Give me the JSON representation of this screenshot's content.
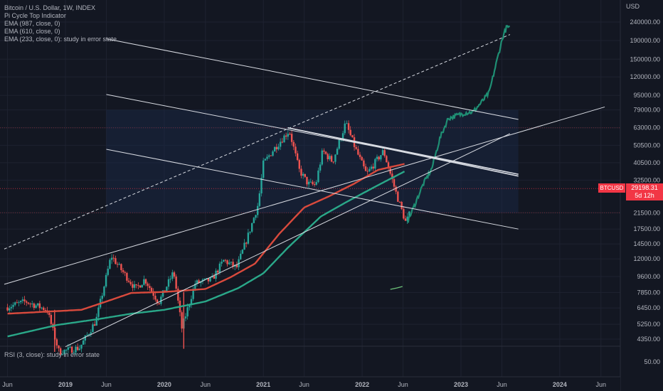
{
  "header": {
    "title": "Bitcoin / U.S. Dollar, 1W, INDEX",
    "indicators": [
      "Pi Cycle Top Indicator",
      "EMA (987, close, 0)",
      "EMA (610, close, 0)",
      "EMA (233, close, 0): study in error state"
    ],
    "rsi_label": "RSI (3, close): study in error state"
  },
  "price_tag": {
    "symbol": "BTCUSD",
    "price": "29198.31",
    "countdown": "5d 12h"
  },
  "colors": {
    "background": "#131722",
    "grid": "#1e2230",
    "up_candle": "#26a69a",
    "down_candle": "#ef5350",
    "ema_red": "#d94a3d",
    "ema_green": "#2aa889",
    "projection": "#1f8f74",
    "lines": "#d8dbe2",
    "price_tag": "#f23645"
  },
  "chart_data": {
    "type": "candlestick",
    "currency": "USD",
    "y_scale": "log",
    "y_ticks": [
      "240000.00",
      "190000.00",
      "150000.00",
      "120000.00",
      "95000.00",
      "79000.00",
      "63000.00",
      "50500.00",
      "40500.00",
      "32500.00",
      "21500.00",
      "17500.00",
      "14500.00",
      "12000.00",
      "9600.00",
      "7850.00",
      "6450.00",
      "5250.00",
      "4350.00"
    ],
    "rsi_tick": "50.00",
    "x_ticks": [
      "Jun",
      "2019",
      "Jun",
      "2020",
      "Jun",
      "2021",
      "Jun",
      "2022",
      "Jun",
      "2023",
      "Jun",
      "2024",
      "Jun"
    ],
    "x_ticks_bold": [
      "2019",
      "2020",
      "2021",
      "2022",
      "2023",
      "2024"
    ],
    "price_anchors": [
      [
        "2018-06-01",
        6500
      ],
      [
        "2018-08-15",
        7000
      ],
      [
        "2018-11-01",
        6300
      ],
      [
        "2018-12-15",
        3700
      ],
      [
        "2019-03-01",
        3900
      ],
      [
        "2019-05-01",
        5500
      ],
      [
        "2019-06-26",
        12500
      ],
      [
        "2019-08-01",
        10500
      ],
      [
        "2019-09-25",
        8200
      ],
      [
        "2019-10-28",
        9300
      ],
      [
        "2019-12-18",
        6900
      ],
      [
        "2020-02-12",
        10200
      ],
      [
        "2020-03-13",
        5000
      ],
      [
        "2020-05-01",
        8800
      ],
      [
        "2020-07-01",
        9200
      ],
      [
        "2020-08-15",
        11800
      ],
      [
        "2020-10-01",
        10700
      ],
      [
        "2020-11-15",
        16500
      ],
      [
        "2020-12-20",
        24000
      ],
      [
        "2021-01-08",
        40000
      ],
      [
        "2021-02-15",
        48000
      ],
      [
        "2021-04-14",
        61000
      ],
      [
        "2021-05-20",
        37000
      ],
      [
        "2021-06-22",
        31000
      ],
      [
        "2021-07-20",
        30500
      ],
      [
        "2021-08-15",
        47000
      ],
      [
        "2021-09-21",
        41000
      ],
      [
        "2021-11-08",
        67000
      ],
      [
        "2021-12-15",
        48000
      ],
      [
        "2022-01-24",
        35000
      ],
      [
        "2022-03-28",
        47000
      ],
      [
        "2022-05-12",
        28000
      ],
      [
        "2022-06-18",
        19000
      ],
      [
        "2022-07-01",
        21000
      ]
    ],
    "projection_anchors": [
      [
        "2022-06-20",
        19500
      ],
      [
        "2022-07-15",
        24000
      ],
      [
        "2022-08-15",
        31000
      ],
      [
        "2022-09-15",
        37500
      ],
      [
        "2022-10-15",
        55000
      ],
      [
        "2022-11-15",
        71000
      ],
      [
        "2023-01-15",
        76000
      ],
      [
        "2023-02-15",
        77000
      ],
      [
        "2023-03-15",
        86000
      ],
      [
        "2023-04-15",
        98000
      ],
      [
        "2023-05-15",
        150000
      ],
      [
        "2023-06-05",
        200000
      ],
      [
        "2023-06-20",
        227000
      ],
      [
        "2023-07-01",
        220000
      ]
    ],
    "ema_red_anchors": [
      [
        "2018-06-01",
        6000
      ],
      [
        "2019-03-01",
        6300
      ],
      [
        "2019-06-01",
        7000
      ],
      [
        "2019-09-01",
        7800
      ],
      [
        "2020-01-01",
        7900
      ],
      [
        "2020-06-01",
        8200
      ],
      [
        "2020-09-01",
        9500
      ],
      [
        "2020-12-01",
        11300
      ],
      [
        "2021-03-01",
        16500
      ],
      [
        "2021-06-01",
        23000
      ],
      [
        "2021-09-01",
        26500
      ],
      [
        "2021-12-01",
        31000
      ],
      [
        "2022-03-01",
        37000
      ],
      [
        "2022-06-10",
        40000
      ]
    ],
    "ema_green_anchors": [
      [
        "2018-06-01",
        4500
      ],
      [
        "2018-12-01",
        5200
      ],
      [
        "2019-05-01",
        5600
      ],
      [
        "2019-09-01",
        6000
      ],
      [
        "2020-01-01",
        6300
      ],
      [
        "2020-06-01",
        7000
      ],
      [
        "2020-10-01",
        8300
      ],
      [
        "2021-01-01",
        10000
      ],
      [
        "2021-04-01",
        13800
      ],
      [
        "2021-08-01",
        20500
      ],
      [
        "2021-11-01",
        24500
      ],
      [
        "2022-03-01",
        30500
      ],
      [
        "2022-06-10",
        36500
      ]
    ],
    "trend_lines": [
      {
        "points": [
          [
            "2018-05-20",
            13600
          ],
          [
            "2023-07-01",
            205000
          ]
        ],
        "dashed": true
      },
      {
        "points": [
          [
            "2021-04-01",
            63000
          ],
          [
            "2023-08-01",
            35000
          ]
        ]
      },
      {
        "points": [
          [
            "2021-04-01",
            63000
          ],
          [
            "2023-08-01",
            34200
          ]
        ]
      },
      {
        "points": [
          [
            "2019-06-01",
            194000
          ],
          [
            "2023-08-01",
            70000
          ]
        ]
      },
      {
        "points": [
          [
            "2019-06-01",
            96000
          ],
          [
            "2023-08-01",
            35000
          ]
        ]
      },
      {
        "points": [
          [
            "2019-06-01",
            48000
          ],
          [
            "2023-08-01",
            17500
          ]
        ]
      },
      {
        "points": [
          [
            "2018-05-20",
            8700
          ],
          [
            "2024-06-15",
            82000
          ]
        ]
      },
      {
        "points": [
          [
            "2019-01-01",
            3950
          ],
          [
            "2023-07-01",
            58500
          ]
        ]
      }
    ],
    "rsi_fragment": [
      [
        "2022-04-15",
        68
      ],
      [
        "2022-05-10",
        70
      ],
      [
        "2022-05-30",
        72
      ]
    ]
  }
}
